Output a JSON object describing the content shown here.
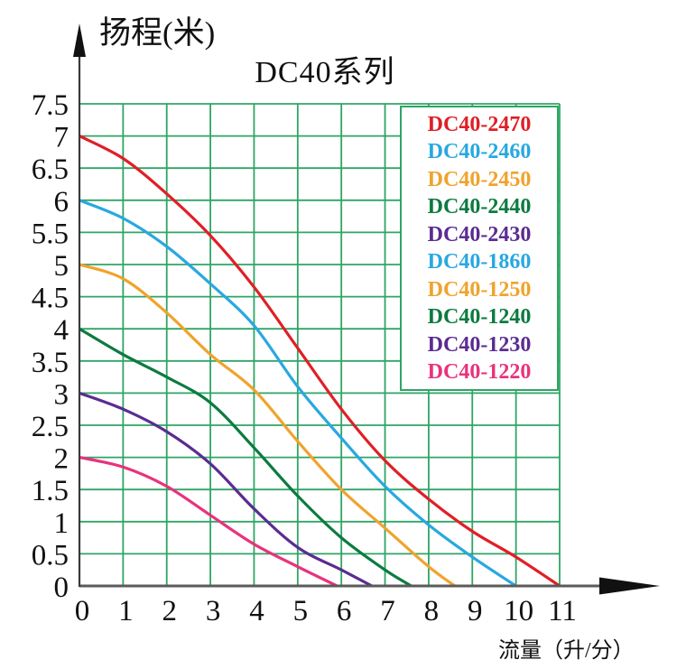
{
  "chart_data": {
    "type": "line",
    "title": "DC40系列",
    "ylabel": "扬程(米)",
    "xlabel": "流量（升/分）",
    "xlim": [
      0,
      11
    ],
    "ylim": [
      0,
      7.5
    ],
    "x_ticks": [
      "0",
      "1",
      "2",
      "3",
      "4",
      "5",
      "6",
      "7",
      "8",
      "9",
      "10",
      "11"
    ],
    "y_ticks": [
      "0",
      "0.5",
      "1",
      "1.5",
      "2",
      "2.5",
      "3",
      "3.5",
      "4",
      "4.5",
      "5",
      "5.5",
      "6",
      "6.5",
      "7",
      "7.5"
    ],
    "grid": "on",
    "grid_color": "#2fa566",
    "axis_color": "#5a5a5a",
    "arrow_color": "#111111",
    "text_color": "#111111",
    "legend_position": "top-right-inside",
    "series": [
      {
        "name": "DC40-2470",
        "models": [
          "DC40-2470"
        ],
        "color": "#e01f26",
        "points": [
          [
            0,
            7.0
          ],
          [
            1,
            6.65
          ],
          [
            2,
            6.1
          ],
          [
            3,
            5.45
          ],
          [
            4,
            4.65
          ],
          [
            5,
            3.7
          ],
          [
            6,
            2.75
          ],
          [
            7,
            1.95
          ],
          [
            8,
            1.35
          ],
          [
            9,
            0.85
          ],
          [
            10,
            0.45
          ],
          [
            11,
            0
          ]
        ]
      },
      {
        "name": "DC40-2460 / DC40-1860",
        "models": [
          "DC40-2460",
          "DC40-1860"
        ],
        "color": "#29a8e0",
        "points": [
          [
            0,
            6.0
          ],
          [
            1,
            5.72
          ],
          [
            2,
            5.28
          ],
          [
            3,
            4.7
          ],
          [
            4,
            4.05
          ],
          [
            5,
            3.1
          ],
          [
            6,
            2.3
          ],
          [
            7,
            1.55
          ],
          [
            8,
            0.95
          ],
          [
            9,
            0.45
          ],
          [
            10,
            0
          ]
        ]
      },
      {
        "name": "DC40-2450 / DC40-1250",
        "models": [
          "DC40-2450",
          "DC40-1250"
        ],
        "color": "#f0a32c",
        "points": [
          [
            0,
            5.0
          ],
          [
            1,
            4.78
          ],
          [
            2,
            4.25
          ],
          [
            3,
            3.6
          ],
          [
            4,
            3.05
          ],
          [
            5,
            2.25
          ],
          [
            6,
            1.5
          ],
          [
            7,
            0.9
          ],
          [
            8,
            0.3
          ],
          [
            8.6,
            0
          ]
        ]
      },
      {
        "name": "DC40-2440 / DC40-1240",
        "models": [
          "DC40-2440",
          "DC40-1240"
        ],
        "color": "#0c7b40",
        "points": [
          [
            0,
            4.0
          ],
          [
            1,
            3.6
          ],
          [
            2,
            3.25
          ],
          [
            3,
            2.85
          ],
          [
            4,
            2.15
          ],
          [
            5,
            1.4
          ],
          [
            6,
            0.75
          ],
          [
            7,
            0.25
          ],
          [
            7.6,
            0
          ]
        ]
      },
      {
        "name": "DC40-2430 / DC40-1230",
        "models": [
          "DC40-2430",
          "DC40-1230"
        ],
        "color": "#5b2c90",
        "points": [
          [
            0,
            3.0
          ],
          [
            1,
            2.75
          ],
          [
            2,
            2.4
          ],
          [
            3,
            1.9
          ],
          [
            4,
            1.2
          ],
          [
            5,
            0.6
          ],
          [
            6,
            0.25
          ],
          [
            6.7,
            0
          ]
        ]
      },
      {
        "name": "DC40-1220",
        "models": [
          "DC40-1220"
        ],
        "color": "#e9327c",
        "points": [
          [
            0,
            2.0
          ],
          [
            1,
            1.85
          ],
          [
            2,
            1.55
          ],
          [
            3,
            1.1
          ],
          [
            4,
            0.65
          ],
          [
            5,
            0.3
          ],
          [
            5.9,
            0
          ]
        ]
      }
    ],
    "legend": [
      {
        "label": "DC40-2470",
        "color": "#e01f26"
      },
      {
        "label": "DC40-2460",
        "color": "#29a8e0"
      },
      {
        "label": "DC40-2450",
        "color": "#f0a32c"
      },
      {
        "label": "DC40-2440",
        "color": "#0c7b40"
      },
      {
        "label": "DC40-2430",
        "color": "#5b2c90"
      },
      {
        "label": "DC40-1860",
        "color": "#29a8e0"
      },
      {
        "label": "DC40-1250",
        "color": "#f0a32c"
      },
      {
        "label": "DC40-1240",
        "color": "#0c7b40"
      },
      {
        "label": "DC40-1230",
        "color": "#5b2c90"
      },
      {
        "label": "DC40-1220",
        "color": "#e9327c"
      }
    ]
  }
}
